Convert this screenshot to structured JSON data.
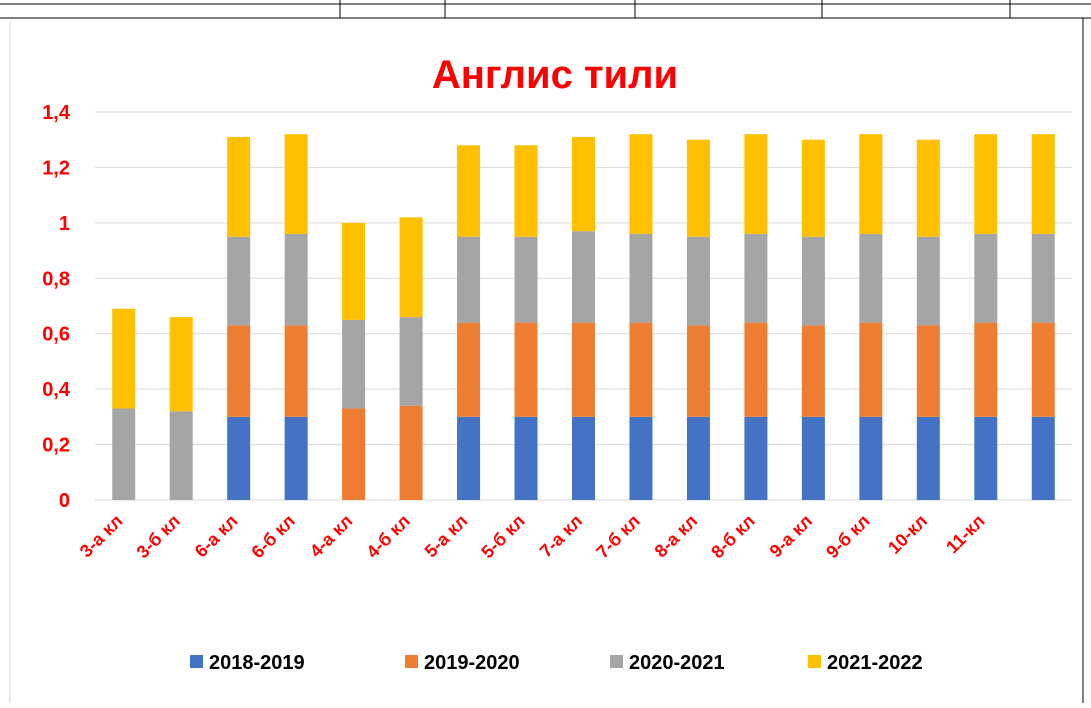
{
  "chart_data": {
    "type": "stacked_bar",
    "title": "Англис тили",
    "categories": [
      "3-а кл",
      "3-б кл",
      "6-а кл",
      "6-б кл",
      "4-а кл",
      "4-б кл",
      "5-а кл",
      "5-б кл",
      "7-а кл",
      "7-б кл",
      "8-а кл",
      "8-б кл",
      "9-а кл",
      "9-б кл",
      "10-кл",
      "11-кл",
      null
    ],
    "series": [
      {
        "name": "2018-2019",
        "color": "#4472c4",
        "values": [
          0,
          0,
          0.3,
          0.3,
          0,
          0,
          0.3,
          0.3,
          0.3,
          0.3,
          0.3,
          0.3,
          0.3,
          0.3,
          0.3,
          0.3,
          0.3
        ]
      },
      {
        "name": "2019-2020",
        "color": "#ed7d31",
        "values": [
          0,
          0,
          0.33,
          0.33,
          0.33,
          0.34,
          0.34,
          0.34,
          0.34,
          0.34,
          0.33,
          0.34,
          0.33,
          0.34,
          0.33,
          0.34,
          0.34
        ]
      },
      {
        "name": "2020-2021",
        "color": "#a5a5a5",
        "values": [
          0.33,
          0.32,
          0.32,
          0.33,
          0.32,
          0.32,
          0.31,
          0.31,
          0.33,
          0.32,
          0.32,
          0.32,
          0.32,
          0.32,
          0.32,
          0.32,
          0.32
        ]
      },
      {
        "name": "2021-2022",
        "color": "#ffc000",
        "values": [
          0.36,
          0.34,
          0.36,
          0.36,
          0.35,
          0.36,
          0.33,
          0.33,
          0.34,
          0.36,
          0.35,
          0.36,
          0.35,
          0.36,
          0.35,
          0.36,
          0.36
        ]
      }
    ],
    "ylim": [
      0,
      1.4
    ],
    "yticks": [
      0,
      {
        "value": 0.2,
        "label": "0,2"
      },
      {
        "value": 0.4,
        "label": "0,4"
      },
      {
        "value": 0.6,
        "label": "0,6"
      },
      {
        "value": 0.8,
        "label": "0,8"
      },
      1,
      {
        "value": 1.2,
        "label": "1,2"
      },
      {
        "value": 1.4,
        "label": "1,4"
      }
    ],
    "grid": true,
    "legend": "bottom"
  }
}
